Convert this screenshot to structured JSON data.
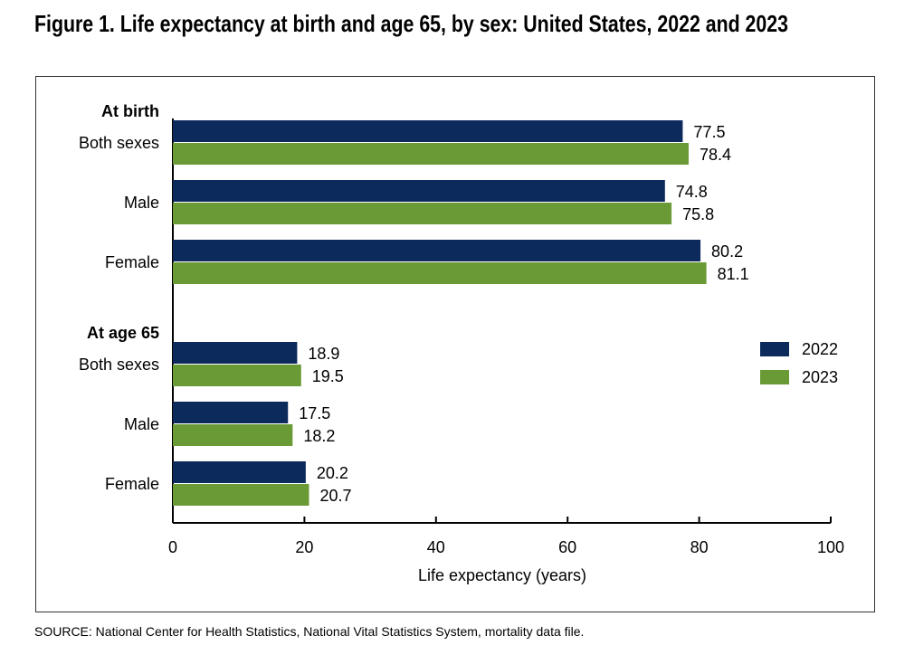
{
  "chart_data": {
    "type": "bar",
    "orientation": "horizontal",
    "title": "Figure 1. Life expectancy at birth and age 65, by sex: United States, 2022 and 2023",
    "groups": [
      {
        "name": "At birth",
        "categories": [
          "Both sexes",
          "Male",
          "Female"
        ]
      },
      {
        "name": "At age 65",
        "categories": [
          "Both sexes",
          "Male",
          "Female"
        ]
      }
    ],
    "series": [
      {
        "name": "2022",
        "color": "#0d2a5c",
        "values": [
          77.5,
          74.8,
          80.2,
          18.9,
          17.5,
          20.2
        ]
      },
      {
        "name": "2023",
        "color": "#6a9a35",
        "values": [
          78.4,
          75.8,
          81.1,
          19.5,
          18.2,
          20.7
        ]
      }
    ],
    "xlim": [
      0,
      100
    ],
    "xticks": [
      0,
      20,
      40,
      60,
      80,
      100
    ],
    "xlabel": "Life expectancy (years)",
    "legend": "right",
    "source": "SOURCE: National Center for Health Statistics, National Vital Statistics System, mortality data file."
  }
}
